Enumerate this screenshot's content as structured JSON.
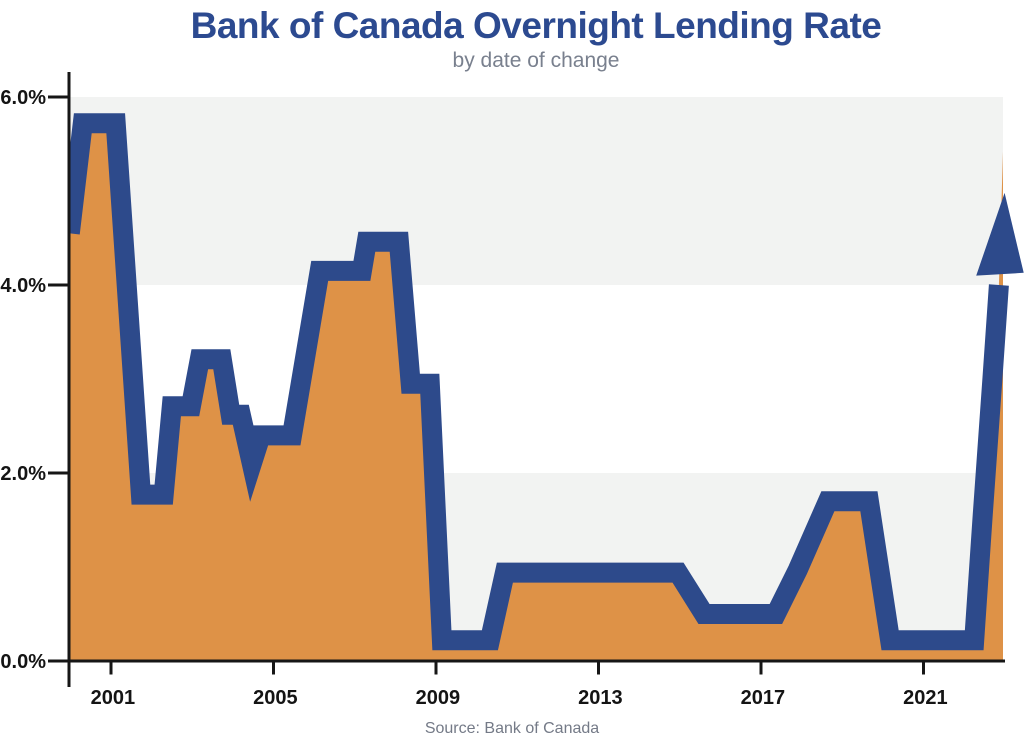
{
  "page": {
    "background": "#ffffff"
  },
  "colors": {
    "line_blue": "#2d4a8b",
    "area_orange": "#de9247",
    "band_gray": "#f2f3f2",
    "axis_black": "#161616",
    "tick_label": "#141414",
    "title_navy": "#2c4a90",
    "subtitle_gray": "#79808e",
    "source_gray": "#747a87"
  },
  "chart_data": {
    "type": "area",
    "title": "Bank of Canada Overnight Lending Rate",
    "subtitle": "by date of change",
    "source": "Source: Bank of Canada",
    "grid": false,
    "legend": false,
    "x_axis": {
      "range": [
        1999.97,
        2022.96
      ],
      "ticks": [
        2001,
        2005,
        2009,
        2013,
        2017,
        2021
      ],
      "tick_labels": [
        "2001",
        "2005",
        "2009",
        "2013",
        "2017",
        "2021"
      ]
    },
    "y_axis": {
      "range": [
        0,
        6
      ],
      "ticks": [
        0,
        2,
        4,
        6
      ],
      "tick_labels": [
        "0.0%",
        "2.0%",
        "4.0%",
        "6.0%"
      ],
      "unit": "percent"
    },
    "shaded_bands": [
      [
        0,
        2
      ],
      [
        4,
        6
      ]
    ],
    "series": [
      {
        "name": "overnight_rate",
        "points": [
          [
            1999.99,
            4.55
          ],
          [
            2000.31,
            5.72
          ],
          [
            2001.12,
            5.72
          ],
          [
            2001.74,
            1.77
          ],
          [
            2002.3,
            1.77
          ],
          [
            2002.5,
            2.71
          ],
          [
            2002.97,
            2.71
          ],
          [
            2003.19,
            3.21
          ],
          [
            2003.73,
            3.21
          ],
          [
            2003.95,
            2.62
          ],
          [
            2004.2,
            2.62
          ],
          [
            2004.47,
            2.1
          ],
          [
            2004.69,
            2.4
          ],
          [
            2005.46,
            2.4
          ],
          [
            2006.14,
            4.15
          ],
          [
            2007.18,
            4.15
          ],
          [
            2007.3,
            4.46
          ],
          [
            2008.09,
            4.46
          ],
          [
            2008.38,
            2.95
          ],
          [
            2008.85,
            2.95
          ],
          [
            2009.15,
            0.22
          ],
          [
            2010.33,
            0.22
          ],
          [
            2010.7,
            0.94
          ],
          [
            2014.96,
            0.94
          ],
          [
            2015.6,
            0.5
          ],
          [
            2017.37,
            0.5
          ],
          [
            2017.91,
            0.97
          ],
          [
            2018.65,
            1.7
          ],
          [
            2019.66,
            1.7
          ],
          [
            2020.18,
            0.22
          ],
          [
            2022.25,
            0.22
          ]
        ]
      }
    ],
    "annotation_arrow": {
      "shaft": [
        [
          2022.25,
          0.22
        ],
        [
          2022.46,
          1.55
        ],
        [
          2022.7,
          3.0
        ],
        [
          2022.86,
          4.0
        ]
      ],
      "head": [
        [
          2023.0,
          4.98
        ],
        [
          2022.3,
          4.1
        ],
        [
          2023.47,
          4.13
        ]
      ],
      "fill_apex": [
        2022.96,
        5.42
      ]
    }
  }
}
